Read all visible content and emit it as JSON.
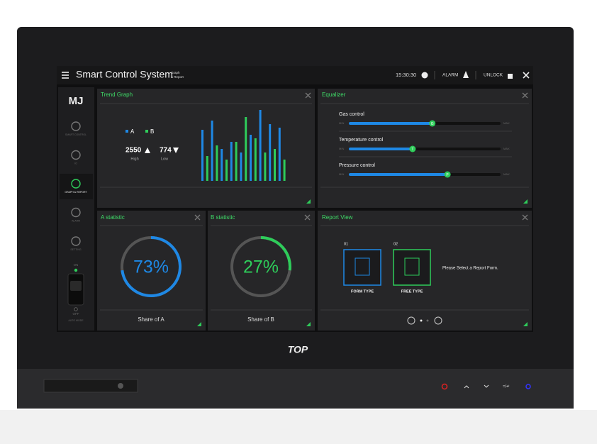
{
  "header": {
    "title": "Smart Control System",
    "subtitle_line1": "Graph",
    "subtitle_line2": "& Report",
    "time": "15:30:30",
    "alarm": "ALARM",
    "unlock": "UNLOCK"
  },
  "sidebar": {
    "logo": "MJ",
    "items": [
      "SMART CONTROL",
      "IO",
      "GRAPH & REPORT",
      "ALARM",
      "SETTING"
    ],
    "switch_on": "ON",
    "switch_off": "OFF",
    "mode": "AUTO MODE"
  },
  "trend": {
    "title": "Trend Graph",
    "high_value": "2550",
    "high_label": "High",
    "low_value": "774",
    "low_label": "Low",
    "series": [
      {
        "name": "A",
        "color": "#1e88e5",
        "values": [
          72,
          85,
          45,
          55,
          40,
          65,
          100,
          80,
          75
        ]
      },
      {
        "name": "B",
        "color": "#2ecc5a",
        "values": [
          35,
          50,
          30,
          55,
          90,
          60,
          40,
          45,
          30
        ]
      }
    ]
  },
  "equalizer": {
    "title": "Equalizer",
    "min": "MIN",
    "max": "MAX",
    "sliders": [
      {
        "name": "Gas control",
        "knob": "G",
        "level": 55
      },
      {
        "name": "Temperature control",
        "knob": "T",
        "level": 42
      },
      {
        "name": "Pressure control",
        "knob": "P",
        "level": 65
      }
    ]
  },
  "stats": [
    {
      "title": "A statistic",
      "value": 73,
      "value_label": "73%",
      "caption": "Share of A",
      "color": "#1e88e5"
    },
    {
      "title": "B statistic",
      "value": 27,
      "value_label": "27%",
      "caption": "Share of B",
      "color": "#2ecc5a"
    }
  ],
  "report": {
    "title": "Report View",
    "forms": [
      {
        "number": "01",
        "label": "FORM TYPE",
        "color": "#1e88e5"
      },
      {
        "number": "02",
        "label": "FREE TYPE",
        "color": "#2ecc5a"
      }
    ],
    "prompt": "Please Select a Report Form."
  },
  "brand": "TOP",
  "bezel_key": "=/↵"
}
